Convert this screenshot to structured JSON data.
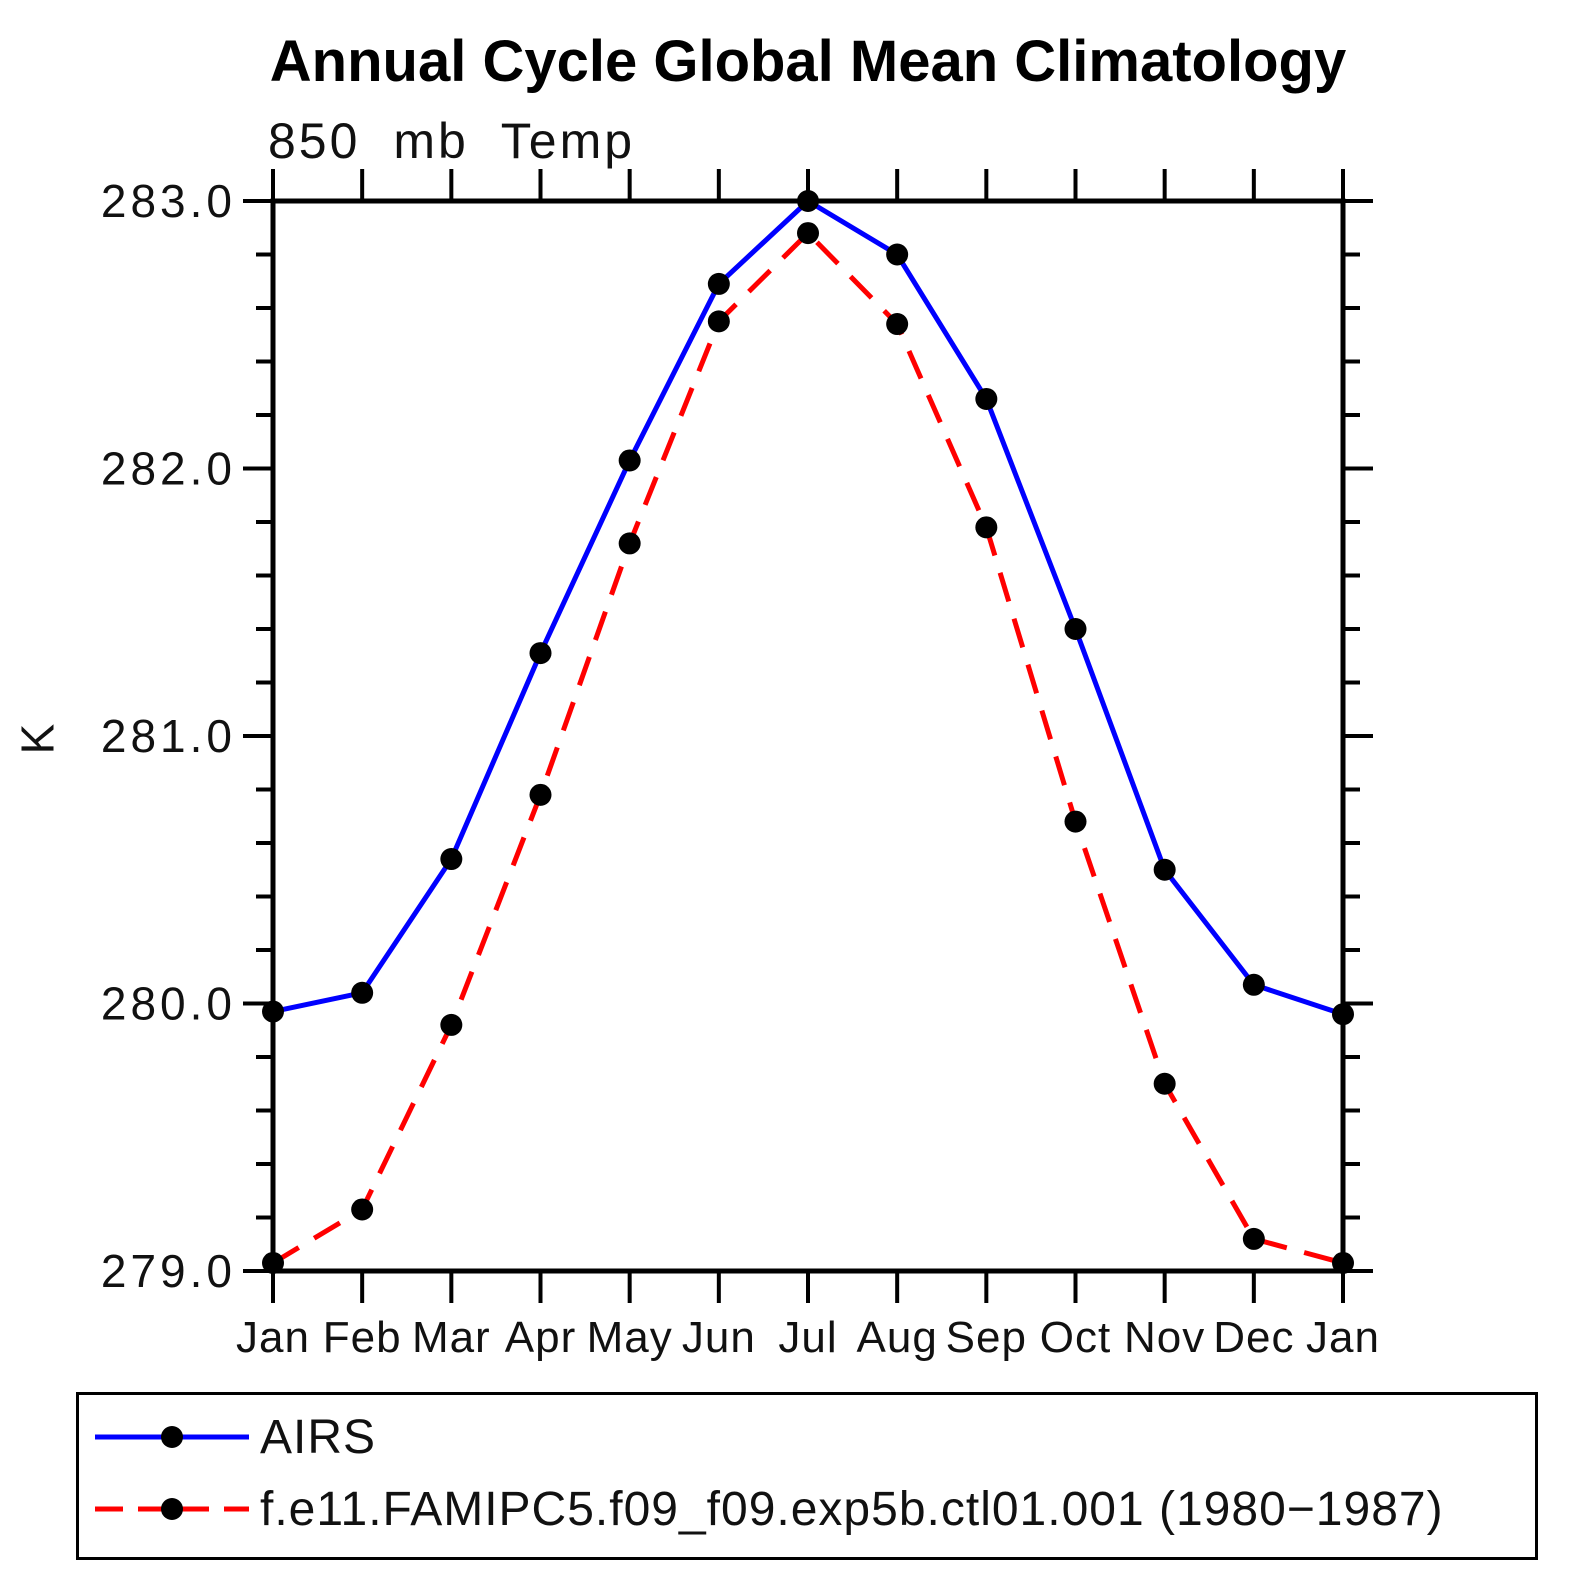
{
  "title": "Annual Cycle Global Mean Climatology",
  "subtitle": "850 mb Temp",
  "ylabel": "K",
  "chart_data": {
    "type": "line",
    "categories": [
      "Jan",
      "Feb",
      "Mar",
      "Apr",
      "May",
      "Jun",
      "Jul",
      "Aug",
      "Sep",
      "Oct",
      "Nov",
      "Dec",
      "Jan"
    ],
    "series": [
      {
        "name": "AIRS",
        "color": "#0000ff",
        "line_style": "solid",
        "marker": "filled-circle",
        "marker_color": "#000000",
        "values": [
          279.97,
          280.04,
          280.54,
          281.31,
          282.03,
          282.69,
          283.0,
          282.8,
          282.26,
          281.4,
          280.5,
          280.07,
          279.96
        ]
      },
      {
        "name": "f.e11.FAMIPC5.f09_f09.exp5b.ctl01.001 (1980−1987)",
        "color": "#ff0000",
        "line_style": "dashed",
        "marker": "filled-circle",
        "marker_color": "#000000",
        "values": [
          279.03,
          279.23,
          279.92,
          280.78,
          281.72,
          282.55,
          282.88,
          282.54,
          281.78,
          280.68,
          279.7,
          279.12,
          279.03
        ]
      }
    ],
    "xlabel": "",
    "ylabel": "K",
    "ylim": [
      279.0,
      283.0
    ],
    "ytick_step": 1.0,
    "yminor_step": 0.2,
    "ytick_labels": [
      "279.0",
      "280.0",
      "281.0",
      "282.0",
      "283.0"
    ],
    "grid": false,
    "legend_position": "bottom-box"
  }
}
